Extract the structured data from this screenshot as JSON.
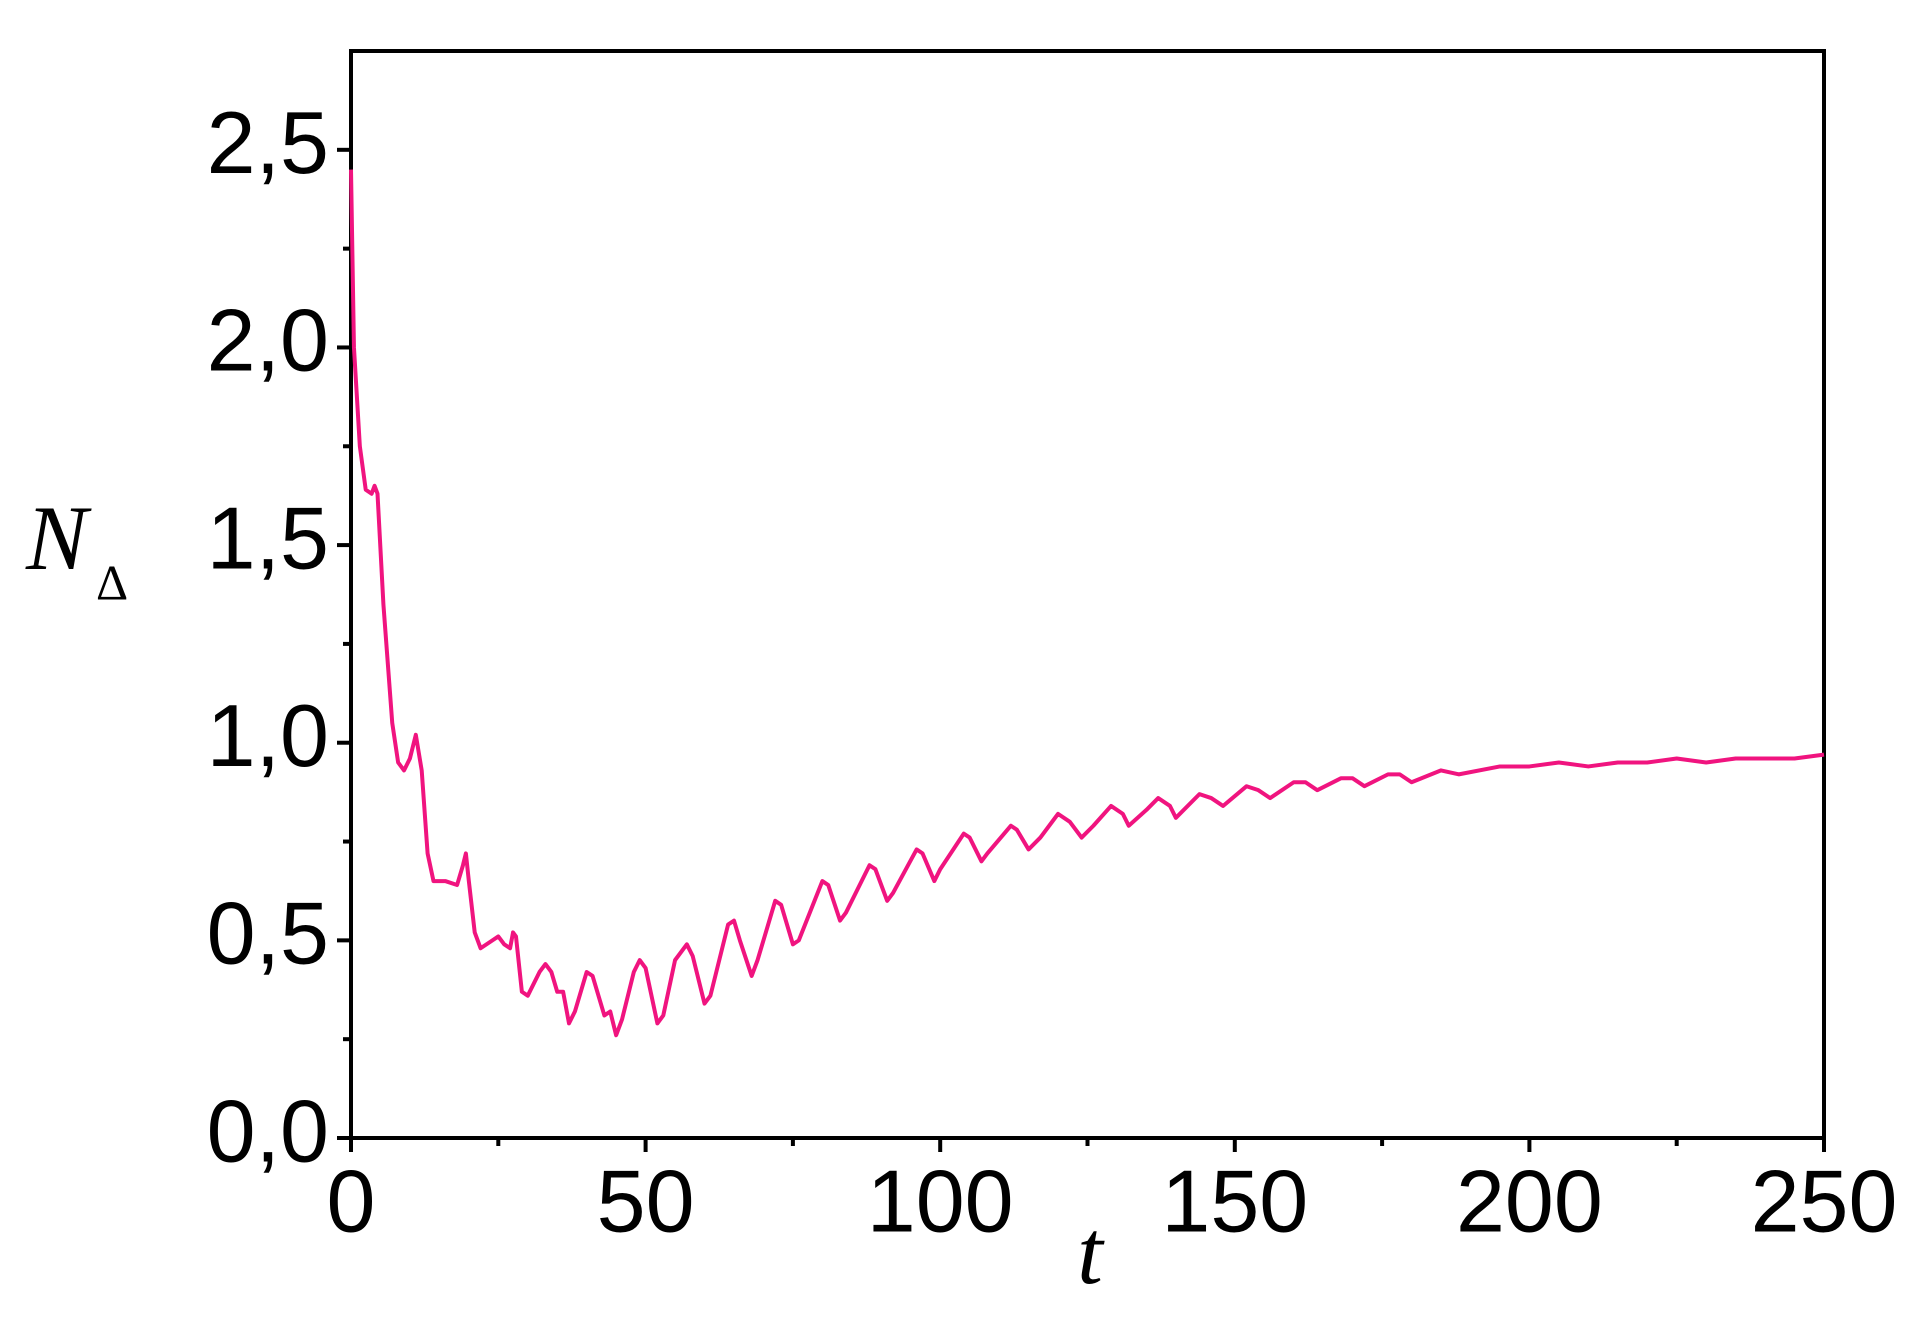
{
  "chart_data": {
    "type": "line",
    "x_label": "t",
    "y_label": "N",
    "y_label_subscript": "Δ",
    "x": [
      0,
      0.5,
      1.5,
      2.5,
      3.5,
      4,
      4.5,
      5.5,
      7,
      8,
      9,
      10,
      11,
      12,
      13,
      14,
      16,
      18,
      19,
      19.5,
      20,
      21,
      22,
      24,
      25,
      26,
      27,
      27.5,
      28,
      29,
      30,
      32,
      33,
      34,
      35,
      36,
      37,
      38,
      40,
      41,
      42,
      43,
      44,
      45,
      46,
      48,
      49,
      50,
      52,
      53,
      55,
      57,
      58,
      60,
      61,
      64,
      65,
      66,
      68,
      69,
      72,
      73,
      75,
      76,
      80,
      81,
      83,
      84,
      88,
      89,
      91,
      92,
      96,
      97,
      99,
      100,
      104,
      105,
      107,
      108,
      112,
      113,
      115,
      117,
      120,
      122,
      124,
      126,
      129,
      131,
      132,
      135,
      137,
      139,
      140,
      144,
      146,
      148,
      152,
      154,
      156,
      160,
      162,
      164,
      168,
      170,
      172,
      176,
      178,
      180,
      185,
      188,
      195,
      200,
      205,
      210,
      215,
      220,
      225,
      230,
      235,
      240,
      245,
      250
    ],
    "series": [
      {
        "name": "N_Δ",
        "color": "#f0147f",
        "values": [
          2.45,
          2.0,
          1.75,
          1.64,
          1.63,
          1.65,
          1.63,
          1.35,
          1.05,
          0.95,
          0.93,
          0.96,
          1.02,
          0.93,
          0.72,
          0.65,
          0.65,
          0.64,
          0.69,
          0.72,
          0.65,
          0.52,
          0.48,
          0.5,
          0.51,
          0.49,
          0.48,
          0.52,
          0.51,
          0.37,
          0.36,
          0.42,
          0.44,
          0.42,
          0.37,
          0.37,
          0.29,
          0.32,
          0.42,
          0.41,
          0.36,
          0.31,
          0.32,
          0.26,
          0.3,
          0.42,
          0.45,
          0.43,
          0.29,
          0.31,
          0.45,
          0.49,
          0.46,
          0.34,
          0.36,
          0.54,
          0.55,
          0.5,
          0.41,
          0.45,
          0.6,
          0.59,
          0.49,
          0.5,
          0.65,
          0.64,
          0.55,
          0.57,
          0.69,
          0.68,
          0.6,
          0.62,
          0.73,
          0.72,
          0.65,
          0.68,
          0.77,
          0.76,
          0.7,
          0.72,
          0.79,
          0.78,
          0.73,
          0.76,
          0.82,
          0.8,
          0.76,
          0.79,
          0.84,
          0.82,
          0.79,
          0.83,
          0.86,
          0.84,
          0.81,
          0.87,
          0.86,
          0.84,
          0.89,
          0.88,
          0.86,
          0.9,
          0.9,
          0.88,
          0.91,
          0.91,
          0.89,
          0.92,
          0.92,
          0.9,
          0.93,
          0.92,
          0.94,
          0.94,
          0.95,
          0.94,
          0.95,
          0.95,
          0.96,
          0.95,
          0.96,
          0.96,
          0.96,
          0.97
        ]
      }
    ],
    "xlim": [
      0,
      250
    ],
    "xticks": [
      0,
      50,
      100,
      150,
      200,
      250
    ],
    "xminorticks": [
      25,
      75,
      125,
      175,
      225
    ],
    "ylim": [
      0,
      2.75
    ],
    "yticks": [
      {
        "value": 0,
        "label": "0,0"
      },
      {
        "value": 0.5,
        "label": "0,5"
      },
      {
        "value": 1,
        "label": "1,0"
      },
      {
        "value": 1.5,
        "label": "1,5"
      },
      {
        "value": 2,
        "label": "2,0"
      },
      {
        "value": 2.5,
        "label": "2,5"
      }
    ],
    "yminorticks": [
      0.25,
      0.75,
      1.25,
      1.75,
      2.25
    ],
    "grid": false
  }
}
